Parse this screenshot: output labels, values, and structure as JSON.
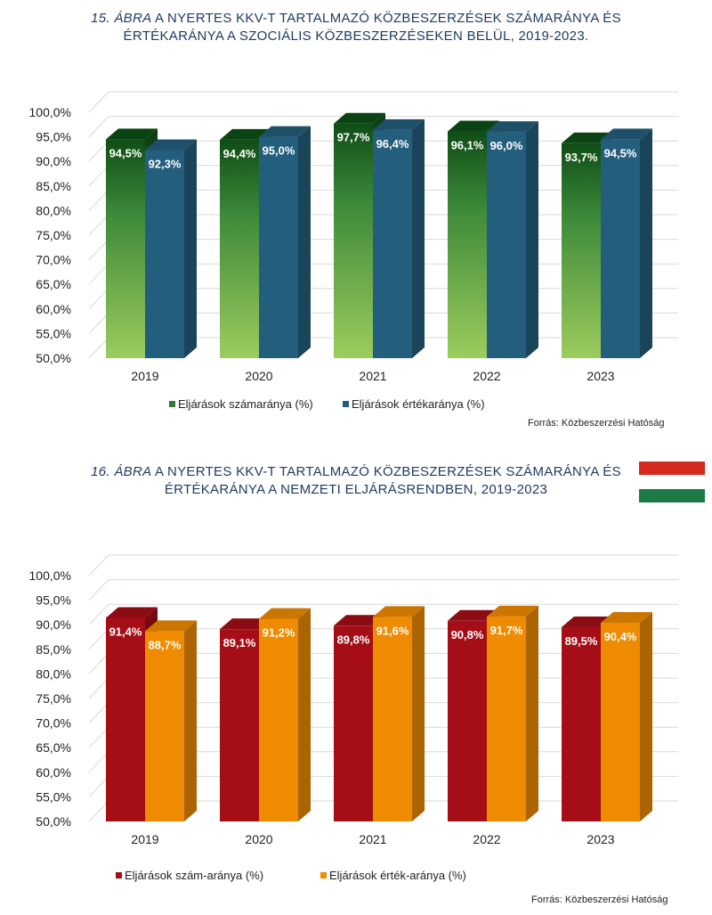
{
  "charts": [
    {
      "title_fig": "15. ábra",
      "title_rest": " A NYERTES KKV-T TARTALMAZÓ KÖZBESZERZÉSEK SZÁMARÁNYA ÉS",
      "title_line2": "ÉRTÉKARÁNYA A SZOCIÁLIS KÖZBESZERZÉSEKEN BELÜL, 2019-2023.",
      "source": "Forrás: Közbeszerzési Hatóság"
    },
    {
      "title_fig": "16. ábra",
      "title_rest": " A NYERTES KKV-T TARTALMAZÓ KÖZBESZERZÉSEK SZÁMARÁNYA ÉS",
      "title_line2": "ÉRTÉKARÁNYA A NEMZETI ELJÁRÁSRENDBEN, 2019-2023",
      "source": "Forrás: Közbeszerzési Hatóság"
    }
  ],
  "colors": {
    "flag_red": "#d52b1e",
    "flag_white": "#ffffff",
    "flag_green": "#1c7a45"
  },
  "chart_data": [
    {
      "type": "bar",
      "categories": [
        "2019",
        "2020",
        "2021",
        "2022",
        "2023"
      ],
      "ylim": [
        50,
        100
      ],
      "yticks": [
        "50,0%",
        "55,0%",
        "60,0%",
        "65,0%",
        "70,0%",
        "75,0%",
        "80,0%",
        "85,0%",
        "90,0%",
        "95,0%",
        "100,0%"
      ],
      "grid": true,
      "legend_position": "bottom",
      "series": [
        {
          "name": "Eljárások számaránya (%)",
          "values": [
            94.5,
            94.4,
            97.7,
            96.1,
            93.7
          ],
          "labels": [
            "94,5%",
            "94,4%",
            "97,7%",
            "96,1%",
            "93,7%"
          ],
          "color": "#2e7d32"
        },
        {
          "name": "Eljárások értékaránya (%)",
          "values": [
            92.3,
            95.0,
            96.4,
            96.0,
            94.5
          ],
          "labels": [
            "92,3%",
            "95,0%",
            "96,4%",
            "96,0%",
            "94,5%"
          ],
          "color": "#245e7d"
        }
      ]
    },
    {
      "type": "bar",
      "categories": [
        "2019",
        "2020",
        "2021",
        "2022",
        "2023"
      ],
      "ylim": [
        50,
        100
      ],
      "yticks": [
        "50,0%",
        "55,0%",
        "60,0%",
        "65,0%",
        "70,0%",
        "75,0%",
        "80,0%",
        "85,0%",
        "90,0%",
        "95,0%",
        "100,0%"
      ],
      "grid": true,
      "legend_position": "bottom",
      "series": [
        {
          "name": "Eljárások szám-aránya (%)",
          "values": [
            91.4,
            89.1,
            89.8,
            90.8,
            89.5
          ],
          "labels": [
            "91,4%",
            "89,1%",
            "89,8%",
            "90,8%",
            "89,5%"
          ],
          "color": "#a50e17"
        },
        {
          "name": "Eljárások érték-aránya (%)",
          "values": [
            88.7,
            91.2,
            91.6,
            91.7,
            90.4
          ],
          "labels": [
            "88,7%",
            "91,2%",
            "91,6%",
            "91,7%",
            "90,4%"
          ],
          "color": "#ef8b00"
        }
      ]
    }
  ]
}
